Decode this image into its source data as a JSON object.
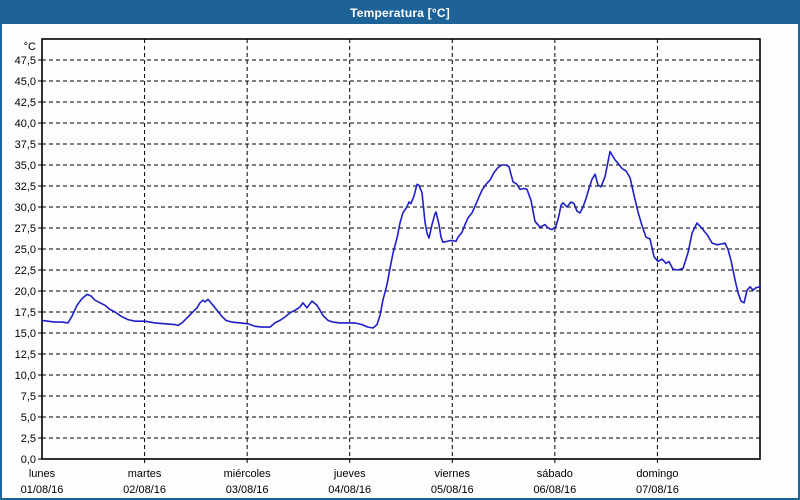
{
  "window": {
    "title": "Temperatura [°C]",
    "titlebar_color": "#1d6398",
    "border_color": "#1d6398",
    "background_color": "#fdfdfd"
  },
  "chart_data": {
    "type": "line",
    "title": "Temperatura [°C]",
    "grid": "dashed",
    "legend": "none",
    "y_axis": {
      "unit_label": "°C",
      "min": 0,
      "max": 50,
      "tick_step": 2.5,
      "tick_labels": [
        "0,0",
        "2,5",
        "5,0",
        "7,5",
        "10,0",
        "12,5",
        "15,0",
        "17,5",
        "20,0",
        "22,5",
        "25,0",
        "27,5",
        "30,0",
        "32,5",
        "35,0",
        "37,5",
        "40,0",
        "42,5",
        "45,0",
        "47,5"
      ]
    },
    "x_axis": {
      "unit": "days since 01/08/16 00:00",
      "range_days": [
        0,
        7
      ],
      "days": [
        {
          "weekday": "lunes",
          "date": "01/08/16"
        },
        {
          "weekday": "martes",
          "date": "02/08/16"
        },
        {
          "weekday": "miércoles",
          "date": "03/08/16"
        },
        {
          "weekday": "jueves",
          "date": "04/08/16"
        },
        {
          "weekday": "viernes",
          "date": "05/08/16"
        },
        {
          "weekday": "sábado",
          "date": "06/08/16"
        },
        {
          "weekday": "domingo",
          "date": "07/08/16"
        }
      ]
    },
    "series": [
      {
        "name": "Temperatura",
        "color": "#1f1fc8",
        "points": [
          [
            0,
            16.5
          ],
          [
            0.058,
            16.4
          ],
          [
            0.127,
            16.3
          ],
          [
            0.195,
            16.3
          ],
          [
            0.253,
            16.2
          ],
          [
            0.292,
            17
          ],
          [
            0.341,
            18.3
          ],
          [
            0.39,
            19.1
          ],
          [
            0.439,
            19.6
          ],
          [
            0.478,
            19.4
          ],
          [
            0.517,
            18.9
          ],
          [
            0.565,
            18.6
          ],
          [
            0.614,
            18.3
          ],
          [
            0.663,
            17.8
          ],
          [
            0.712,
            17.5
          ],
          [
            0.77,
            17
          ],
          [
            0.838,
            16.6
          ],
          [
            0.907,
            16.4
          ],
          [
            1.004,
            16.4
          ],
          [
            1.102,
            16.2
          ],
          [
            1.199,
            16.1
          ],
          [
            1.297,
            16
          ],
          [
            1.326,
            15.9
          ],
          [
            1.365,
            16.2
          ],
          [
            1.414,
            16.8
          ],
          [
            1.462,
            17.4
          ],
          [
            1.511,
            18
          ],
          [
            1.54,
            18.6
          ],
          [
            1.57,
            18.9
          ],
          [
            1.589,
            18.7
          ],
          [
            1.618,
            19
          ],
          [
            1.667,
            18.3
          ],
          [
            1.706,
            17.7
          ],
          [
            1.745,
            17.1
          ],
          [
            1.794,
            16.5
          ],
          [
            1.852,
            16.3
          ],
          [
            1.93,
            16.2
          ],
          [
            2.008,
            16.1
          ],
          [
            2.077,
            15.8
          ],
          [
            2.145,
            15.7
          ],
          [
            2.223,
            15.7
          ],
          [
            2.271,
            16.2
          ],
          [
            2.32,
            16.5
          ],
          [
            2.369,
            16.9
          ],
          [
            2.418,
            17.4
          ],
          [
            2.466,
            17.7
          ],
          [
            2.515,
            18.1
          ],
          [
            2.544,
            18.6
          ],
          [
            2.583,
            18
          ],
          [
            2.632,
            18.8
          ],
          [
            2.681,
            18.3
          ],
          [
            2.71,
            17.7
          ],
          [
            2.739,
            17.1
          ],
          [
            2.788,
            16.5
          ],
          [
            2.837,
            16.3
          ],
          [
            2.905,
            16.2
          ],
          [
            3.003,
            16.2
          ],
          [
            3.051,
            16.2
          ],
          [
            3.12,
            16
          ],
          [
            3.178,
            15.7
          ],
          [
            3.227,
            15.6
          ],
          [
            3.266,
            16
          ],
          [
            3.295,
            17.1
          ],
          [
            3.324,
            18.9
          ],
          [
            3.363,
            20.7
          ],
          [
            3.393,
            22.7
          ],
          [
            3.422,
            24.5
          ],
          [
            3.461,
            26.3
          ],
          [
            3.49,
            28.1
          ],
          [
            3.519,
            29.3
          ],
          [
            3.558,
            30
          ],
          [
            3.578,
            30.6
          ],
          [
            3.597,
            30.4
          ],
          [
            3.627,
            31.3
          ],
          [
            3.656,
            32.7
          ],
          [
            3.675,
            32.6
          ],
          [
            3.705,
            31.7
          ],
          [
            3.734,
            28.2
          ],
          [
            3.753,
            26.9
          ],
          [
            3.773,
            26.3
          ],
          [
            3.802,
            27.9
          ],
          [
            3.831,
            29.2
          ],
          [
            3.841,
            29.4
          ],
          [
            3.87,
            27.9
          ],
          [
            3.89,
            26.4
          ],
          [
            3.909,
            25.8
          ],
          [
            3.948,
            25.9
          ],
          [
            3.977,
            26
          ],
          [
            4.007,
            26
          ],
          [
            4.036,
            25.9
          ],
          [
            4.056,
            26.4
          ],
          [
            4.095,
            27
          ],
          [
            4.124,
            27.9
          ],
          [
            4.153,
            28.7
          ],
          [
            4.192,
            29.3
          ],
          [
            4.221,
            30.1
          ],
          [
            4.26,
            31.2
          ],
          [
            4.29,
            32
          ],
          [
            4.329,
            32.7
          ],
          [
            4.368,
            33.2
          ],
          [
            4.407,
            34.1
          ],
          [
            4.446,
            34.7
          ],
          [
            4.484,
            35
          ],
          [
            4.523,
            35
          ],
          [
            4.553,
            34.8
          ],
          [
            4.592,
            33
          ],
          [
            4.631,
            32.7
          ],
          [
            4.66,
            32.1
          ],
          [
            4.699,
            32.2
          ],
          [
            4.728,
            32.1
          ],
          [
            4.767,
            30.8
          ],
          [
            4.806,
            28.3
          ],
          [
            4.855,
            27.6
          ],
          [
            4.904,
            27.9
          ],
          [
            4.933,
            27.5
          ],
          [
            4.972,
            27.3
          ],
          [
            5.011,
            27.7
          ],
          [
            5.04,
            29
          ],
          [
            5.06,
            30.2
          ],
          [
            5.079,
            30.5
          ],
          [
            5.118,
            30
          ],
          [
            5.157,
            30.6
          ],
          [
            5.187,
            30.4
          ],
          [
            5.216,
            29.5
          ],
          [
            5.245,
            29.3
          ],
          [
            5.274,
            30
          ],
          [
            5.304,
            31
          ],
          [
            5.333,
            32.2
          ],
          [
            5.362,
            33.3
          ],
          [
            5.392,
            33.9
          ],
          [
            5.421,
            32.6
          ],
          [
            5.45,
            32.4
          ],
          [
            5.489,
            33.6
          ],
          [
            5.508,
            34.8
          ],
          [
            5.538,
            36.6
          ],
          [
            5.557,
            36.2
          ],
          [
            5.587,
            35.6
          ],
          [
            5.616,
            35.2
          ],
          [
            5.655,
            34.6
          ],
          [
            5.694,
            34.3
          ],
          [
            5.733,
            33.5
          ],
          [
            5.772,
            31.4
          ],
          [
            5.811,
            29.4
          ],
          [
            5.85,
            27.8
          ],
          [
            5.889,
            26.4
          ],
          [
            5.928,
            26.2
          ],
          [
            5.967,
            24.1
          ],
          [
            6.006,
            23.5
          ],
          [
            6.045,
            23.8
          ],
          [
            6.084,
            23.3
          ],
          [
            6.113,
            23.5
          ],
          [
            6.152,
            22.6
          ],
          [
            6.201,
            22.5
          ],
          [
            6.25,
            22.7
          ],
          [
            6.299,
            24.6
          ],
          [
            6.338,
            26.9
          ],
          [
            6.386,
            28.1
          ],
          [
            6.425,
            27.6
          ],
          [
            6.484,
            26.7
          ],
          [
            6.533,
            25.7
          ],
          [
            6.581,
            25.5
          ],
          [
            6.62,
            25.6
          ],
          [
            6.659,
            25.7
          ],
          [
            6.689,
            24.9
          ],
          [
            6.718,
            23.6
          ],
          [
            6.757,
            21.3
          ],
          [
            6.786,
            19.8
          ],
          [
            6.815,
            18.8
          ],
          [
            6.845,
            18.6
          ],
          [
            6.874,
            20.1
          ],
          [
            6.903,
            20.5
          ],
          [
            6.932,
            20.1
          ],
          [
            6.962,
            20.4
          ],
          [
            7,
            20.5
          ]
        ]
      }
    ]
  }
}
